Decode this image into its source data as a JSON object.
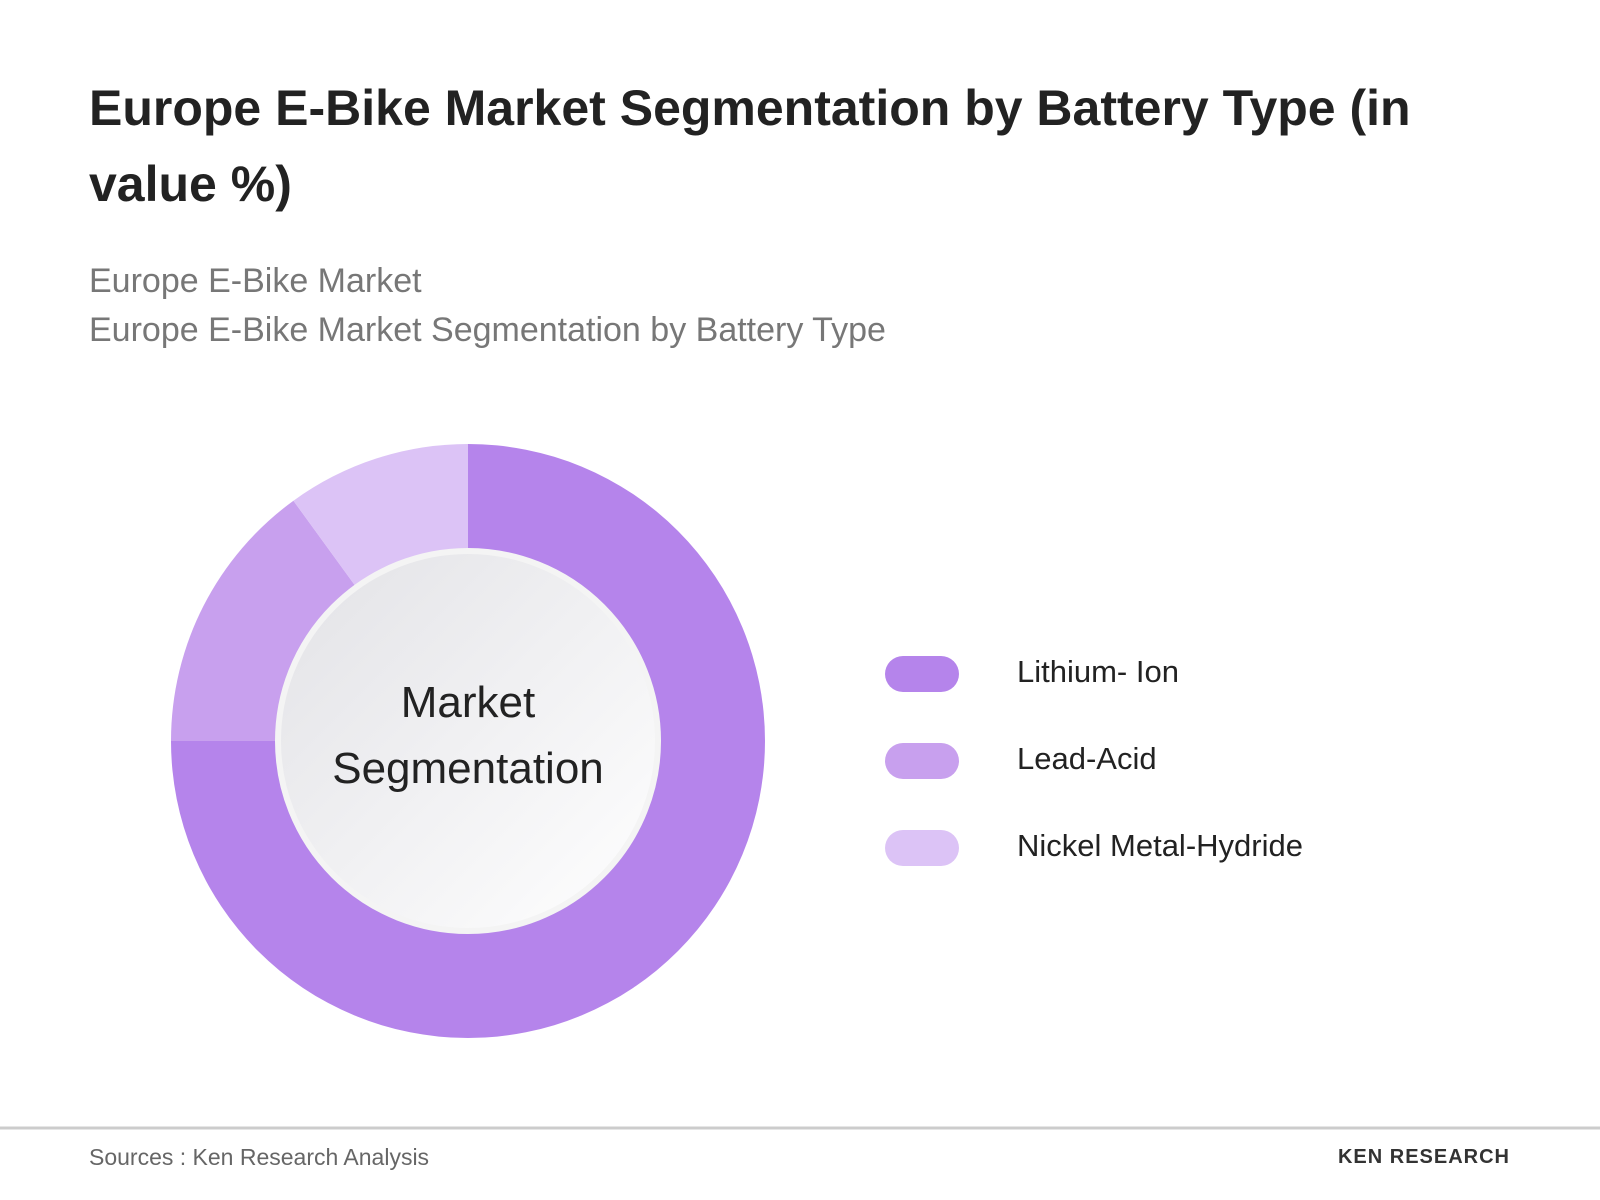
{
  "chart_data": {
    "type": "donut",
    "title": "Europe E-Bike Market Segmentation by Battery Type (in value %)",
    "subtitle": [
      "Europe E-Bike Market",
      "Europe E-Bike Market Segmentation by Battery Type"
    ],
    "center_label": "Market Segmentation",
    "categories": [
      "Lithium- Ion",
      "Lead-Acid",
      "Nickel Metal-Hydride"
    ],
    "values": [
      75,
      15,
      10
    ],
    "colors": [
      "#b584eb",
      "#c8a0ee",
      "#dcc3f6"
    ],
    "source": "Sources : Ken Research Analysis",
    "logo": "KEN RESEARCH"
  }
}
